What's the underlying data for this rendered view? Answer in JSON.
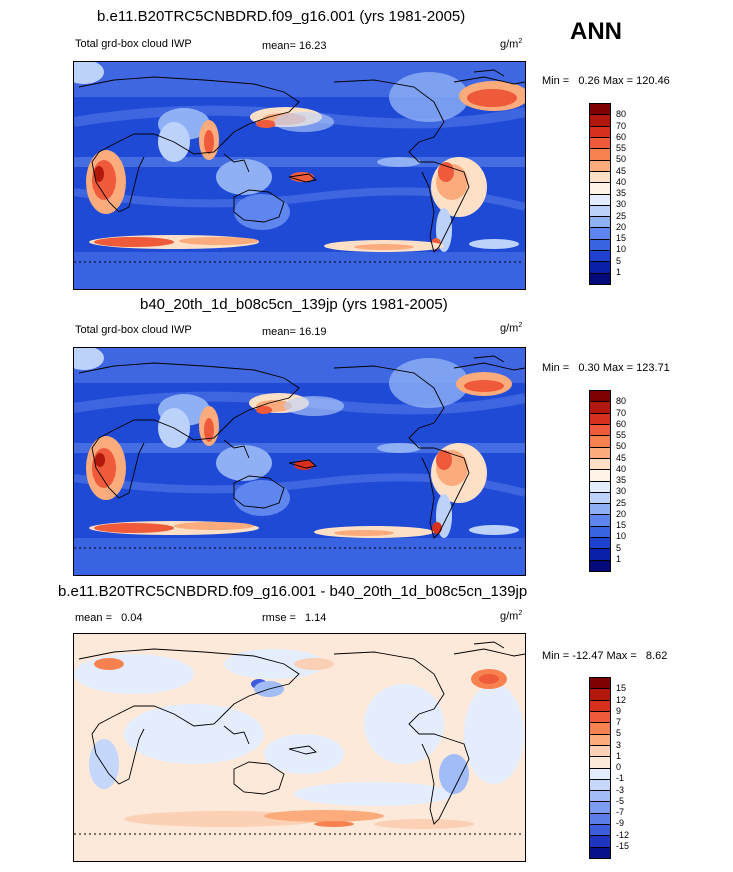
{
  "season": "ANN",
  "units_base": "g/m",
  "units_exp": "2",
  "panels": [
    {
      "title": "b.e11.B20TRC5CNBDRD.f09_g16.001 (yrs 1981-2005)",
      "left_label": "Total grd-box cloud IWP",
      "mean_label": "mean=",
      "mean_value": "16.23",
      "minmax_text": "Min =   0.26 Max = 120.46",
      "legend_labels": [
        "80",
        "70",
        "60",
        "55",
        "50",
        "45",
        "40",
        "35",
        "30",
        "25",
        "20",
        "15",
        "10",
        "5",
        "1"
      ]
    },
    {
      "title": "b40_20th_1d_b08c5cn_139jp (yrs 1981-2005)",
      "left_label": "Total grd-box cloud IWP",
      "mean_label": "mean=",
      "mean_value": "16.19",
      "minmax_text": "Min =   0.30 Max = 123.71",
      "legend_labels": [
        "80",
        "70",
        "60",
        "55",
        "50",
        "45",
        "40",
        "35",
        "30",
        "25",
        "20",
        "15",
        "10",
        "5",
        "1"
      ]
    },
    {
      "title": "b.e11.B20TRC5CNBDRD.f09_g16.001 - b40_20th_1d_b08c5cn_139jp",
      "mean_label": "mean =",
      "mean_value": "0.04",
      "rmse_label": "rmse =",
      "rmse_value": "1.14",
      "minmax_text": "Min = -12.47 Max =   8.62",
      "legend_labels": [
        "15",
        "12",
        "9",
        "7",
        "5",
        "3",
        "1",
        "0",
        "-1",
        "-3",
        "-5",
        "-7",
        "-9",
        "-12",
        "-15"
      ]
    }
  ],
  "colors": {
    "abs_scale": [
      "#7f0000",
      "#b3180c",
      "#d7301f",
      "#ef5a3b",
      "#f7814f",
      "#fbab7c",
      "#fde0c5",
      "#fef3e6",
      "#e3edfd",
      "#bcd2fb",
      "#8fb0f5",
      "#5e86ee",
      "#3a63e2",
      "#1e41cf",
      "#0b20a9",
      "#050a7a"
    ],
    "diff_scale": [
      "#7f0000",
      "#b3180c",
      "#d7301f",
      "#ef5a3b",
      "#f7814f",
      "#fbab7c",
      "#fcd0b4",
      "#fde9da",
      "#e3edfd",
      "#c5d7fb",
      "#a2bcf7",
      "#7b9cf1",
      "#5b7de8",
      "#3d5cdc",
      "#1e33be",
      "#06108a"
    ]
  }
}
